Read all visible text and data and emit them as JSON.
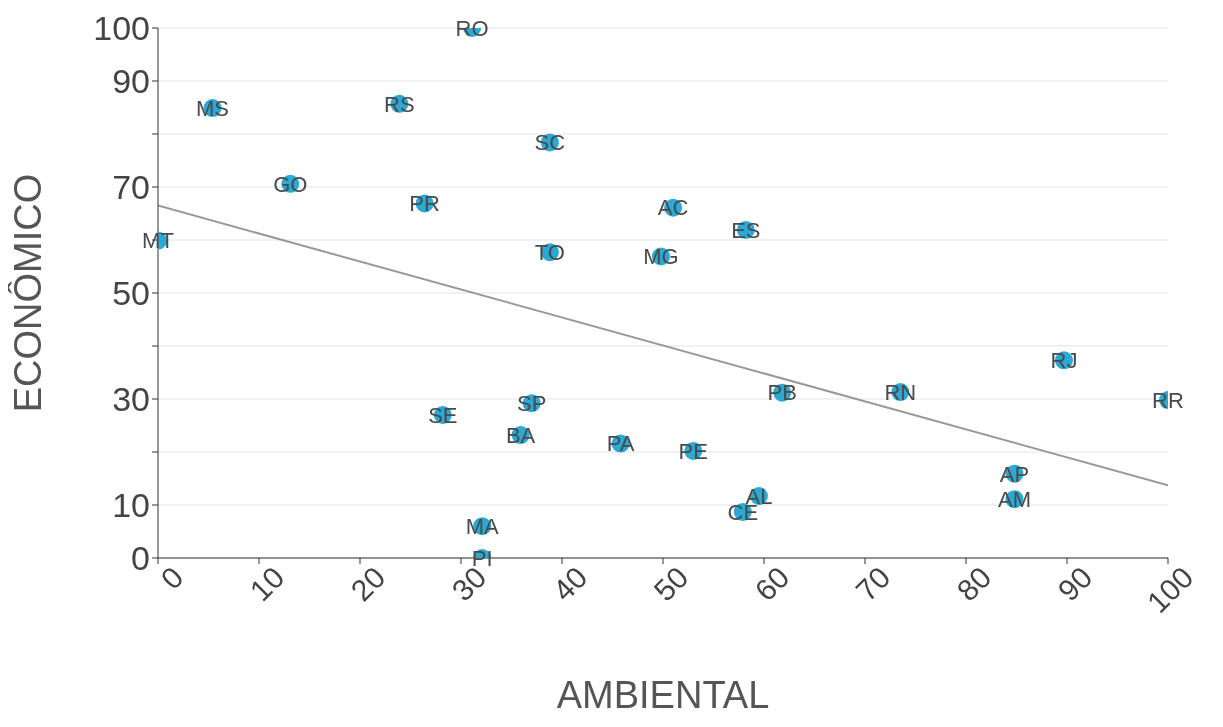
{
  "chart_data": {
    "type": "scatter",
    "xlabel": "AMBIENTAL",
    "ylabel": "ECONÔMICO",
    "xlim": [
      0,
      100
    ],
    "xticks": [
      0,
      10,
      20,
      30,
      40,
      50,
      60,
      70,
      80,
      90,
      100
    ],
    "ylim": [
      0,
      100
    ],
    "yticks": [
      0,
      10,
      {
        "value": 20,
        "label": null
      },
      30,
      {
        "value": 40,
        "label": null
      },
      50,
      {
        "value": 60,
        "label": null
      },
      70,
      {
        "value": 80,
        "label": null
      },
      90,
      100
    ],
    "grid": "y",
    "series": [
      {
        "type": "scatter",
        "marker": "circle",
        "color": "#29a9d4",
        "x": [
          31.1,
          5.4,
          23.9,
          38.8,
          13.1,
          26.4,
          51.0,
          58.2,
          0,
          38.8,
          49.8,
          89.7,
          61.8,
          73.5,
          100,
          37.0,
          28.2,
          35.9,
          45.8,
          53.0,
          84.8,
          84.8,
          59.5,
          57.9,
          32.1,
          32.1
        ],
        "values": [
          100,
          84.9,
          85.7,
          78.4,
          70.6,
          66.9,
          66.1,
          61.9,
          59.9,
          57.7,
          56.9,
          37.3,
          31.2,
          31.3,
          29.8,
          29.2,
          27.0,
          23.2,
          21.6,
          20.2,
          15.9,
          11.1,
          11.7,
          8.7,
          6.0,
          0
        ],
        "value_labels": [
          "RO",
          "MS",
          "RS",
          "SC",
          "GO",
          "PR",
          "AC",
          "ES",
          "MT",
          "TO",
          "MG",
          "RJ",
          "PB",
          "RN",
          "RR",
          "SP",
          "SE",
          "BA",
          "PA",
          "PE",
          "AP",
          "AM",
          "AL",
          "CE",
          "MA",
          "PI"
        ]
      },
      {
        "type": "line",
        "color": "#999999",
        "line_style": "solid",
        "x": [
          0,
          100
        ],
        "values": [
          66.5,
          13.7
        ]
      }
    ]
  }
}
